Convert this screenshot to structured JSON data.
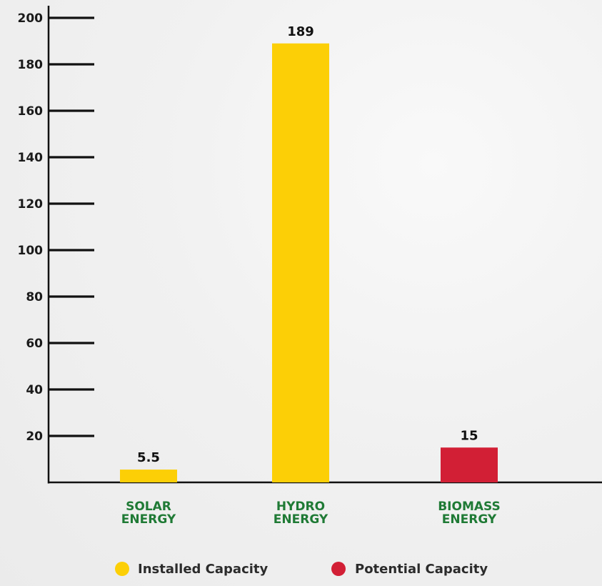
{
  "chart_data": {
    "type": "bar",
    "categories": [
      [
        "SOLAR",
        "ENERGY"
      ],
      [
        "HYDRO",
        "ENERGY"
      ],
      [
        "BIOMASS",
        "ENERGY"
      ]
    ],
    "values": [
      5.5,
      189,
      15
    ],
    "data_labels": [
      "5.5",
      "189",
      "15"
    ],
    "bar_series": [
      "Installed Capacity",
      "Installed Capacity",
      "Potential Capacity"
    ],
    "yticks": [
      20,
      40,
      60,
      80,
      100,
      120,
      140,
      160,
      180,
      200
    ],
    "ylim": [
      0,
      200
    ],
    "grid": false,
    "legend": {
      "placement": "bottom-center",
      "entries": [
        {
          "name": "Installed Capacity",
          "color": "#fccf06"
        },
        {
          "name": "Potential Capacity",
          "color": "#d21f35"
        }
      ]
    },
    "colors": {
      "installed": "#fccf06",
      "potential": "#d21f35",
      "category_text": "#1f7a35",
      "axis": "#111111"
    }
  }
}
